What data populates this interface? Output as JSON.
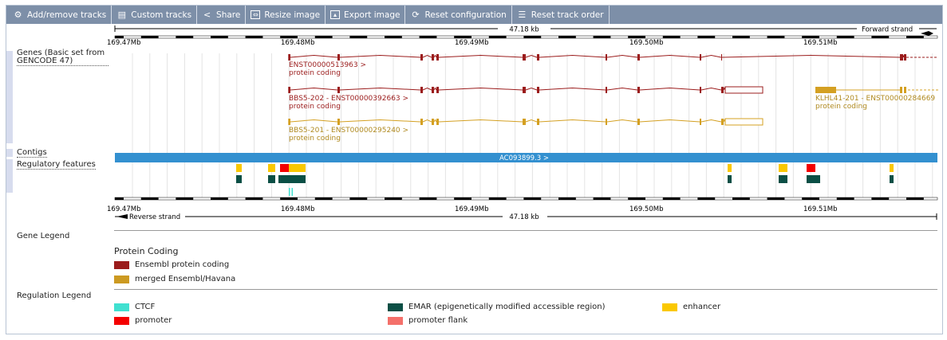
{
  "toolbar": {
    "items": [
      {
        "label": "Add/remove tracks",
        "icon": "gear-icon"
      },
      {
        "label": "Custom tracks",
        "icon": "custom-tracks-icon"
      },
      {
        "label": "Share",
        "icon": "share-icon"
      },
      {
        "label": "Resize image",
        "icon": "resize-icon"
      },
      {
        "label": "Export image",
        "icon": "export-image-icon"
      },
      {
        "label": "Reset configuration",
        "icon": "reset-config-icon"
      },
      {
        "label": "Reset track order",
        "icon": "reset-order-icon"
      }
    ]
  },
  "ruler_top": {
    "span_label": "47.18 kb",
    "strand_label": "Forward strand",
    "ticks": [
      "169.47Mb",
      "169.48Mb",
      "169.49Mb",
      "169.50Mb",
      "169.51Mb"
    ]
  },
  "ruler_bottom": {
    "span_label": "47.18 kb",
    "strand_label": "Reverse strand",
    "ticks": [
      "169.47Mb",
      "169.48Mb",
      "169.49Mb",
      "169.50Mb",
      "169.51Mb"
    ]
  },
  "tracks": {
    "genes_label": "Genes (Basic set from GENCODE 47)",
    "contigs_label": "Contigs",
    "regulatory_label": "Regulatory features",
    "contig_name": "AC093899.3 >"
  },
  "transcripts": [
    {
      "name": "ENST00000513963 >",
      "biotype": "protein coding",
      "color": "#9b1c1c"
    },
    {
      "name": "BBS5-202 - ENST00000392663 >",
      "biotype": "protein coding",
      "color": "#9b1c1c"
    },
    {
      "name": "BBS5-201 - ENST00000295240 >",
      "biotype": "protein coding",
      "color": "#d4a022"
    },
    {
      "name": "KLHL41-201 - ENST00000284669",
      "biotype": "protein coding",
      "color": "#d4a022"
    }
  ],
  "gene_legend": {
    "title": "Gene Legend",
    "group": "Protein Coding",
    "items": [
      {
        "label": "Ensembl protein coding",
        "color": "#9b1c1c"
      },
      {
        "label": "merged Ensembl/Havana",
        "color": "#cc9a22"
      }
    ]
  },
  "regulation_legend": {
    "title": "Regulation Legend",
    "items": [
      {
        "label": "CTCF",
        "color": "#40e0d0"
      },
      {
        "label": "EMAR (epigenetically modified accessible region)",
        "color": "#0b4f45"
      },
      {
        "label": "enhancer",
        "color": "#fac800"
      },
      {
        "label": "promoter",
        "color": "#f40000"
      },
      {
        "label": "promoter flank",
        "color": "#f4706a"
      }
    ]
  }
}
